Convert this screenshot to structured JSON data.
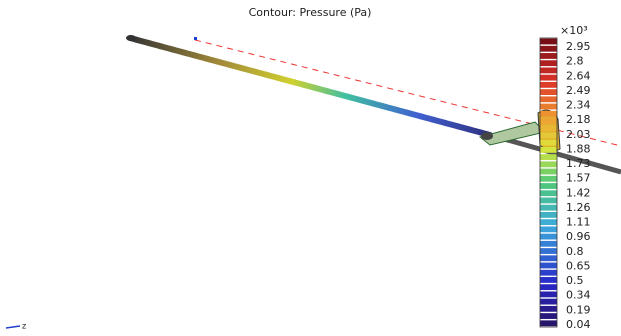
{
  "title": "Contour: Pressure (Pa)",
  "colorbar": {
    "multiplier": "×10³",
    "ticks": [
      2.95,
      2.8,
      2.64,
      2.49,
      2.34,
      2.18,
      2.03,
      1.88,
      1.73,
      1.57,
      1.42,
      1.26,
      1.11,
      0.96,
      0.8,
      0.65,
      0.5,
      0.34,
      0.19,
      0.04
    ]
  },
  "axis_label": "z"
}
